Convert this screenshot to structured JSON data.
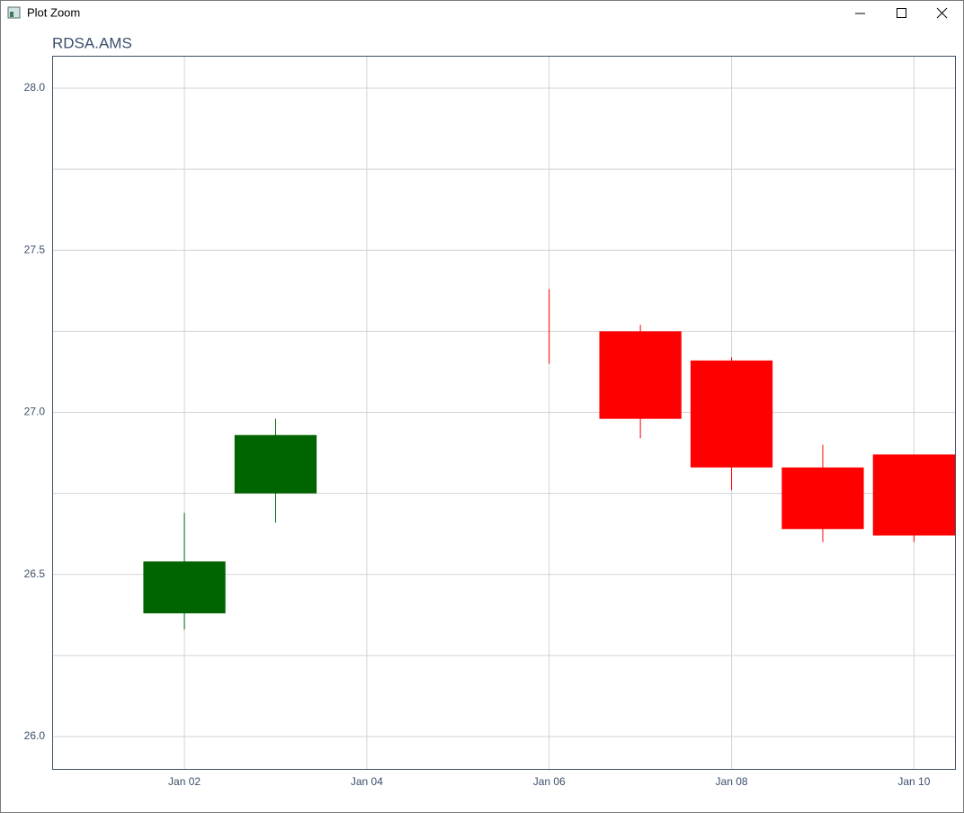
{
  "window": {
    "title": "Plot Zoom"
  },
  "chart_data": {
    "type": "candlestick",
    "title": "RDSA.AMS",
    "x": [
      2,
      3,
      6,
      7,
      8,
      9,
      10
    ],
    "open": [
      26.38,
      26.75,
      null,
      27.25,
      27.16,
      26.83,
      26.87
    ],
    "high": [
      26.69,
      26.98,
      27.38,
      27.27,
      27.17,
      26.9,
      26.87
    ],
    "low": [
      26.33,
      26.66,
      27.15,
      26.92,
      26.76,
      26.6,
      26.6
    ],
    "close": [
      26.54,
      26.93,
      null,
      26.98,
      26.83,
      26.64,
      26.62
    ],
    "up_color": "#006400",
    "down_color": "#ff0000",
    "xlim": [
      0.55,
      10.45
    ],
    "xticks": [
      {
        "value": 2,
        "label": "Jan 02"
      },
      {
        "value": 4,
        "label": "Jan 04"
      },
      {
        "value": 6,
        "label": "Jan 06"
      },
      {
        "value": 8,
        "label": "Jan 08"
      },
      {
        "value": 10,
        "label": "Jan 10"
      }
    ],
    "ylim": [
      25.9,
      28.1
    ],
    "yticks": [
      {
        "value": 26,
        "label": "26.0"
      },
      26.5,
      {
        "value": 27,
        "label": "27.0"
      },
      27.5,
      {
        "value": 28,
        "label": "28.0"
      }
    ],
    "minor_yticks": [
      26.25,
      26.75,
      27.25,
      27.75
    ],
    "grid": true
  }
}
